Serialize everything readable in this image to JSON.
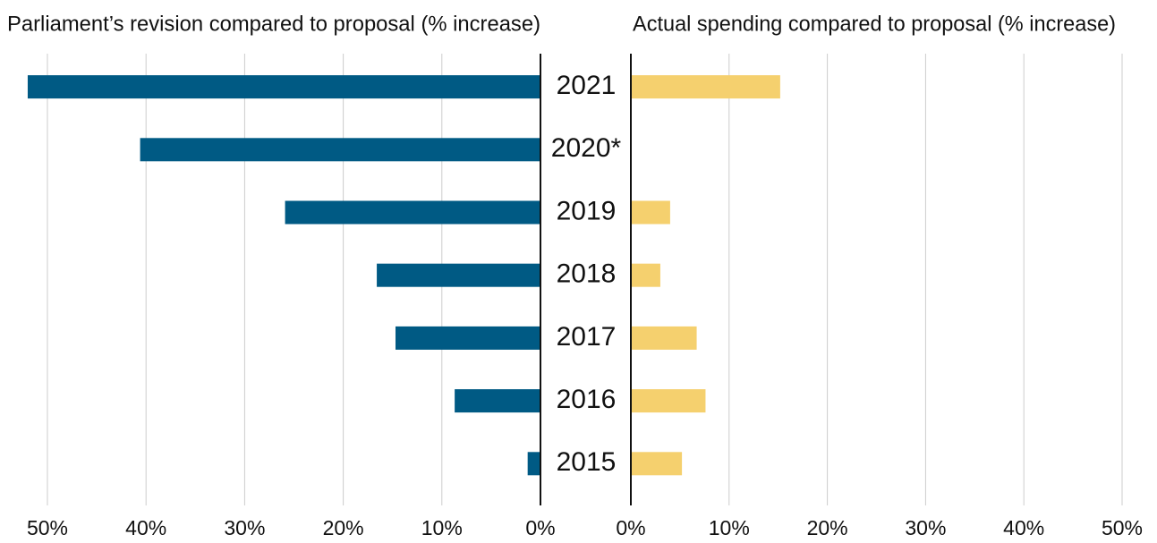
{
  "chart_data": [
    {
      "type": "bar",
      "orientation": "horizontal",
      "direction": "left",
      "title": "Parliament’s revision compared to proposal (% increase)",
      "categories": [
        "2021",
        "2020*",
        "2019",
        "2018",
        "2017",
        "2016",
        "2015"
      ],
      "values": [
        52.0,
        40.6,
        25.9,
        16.6,
        14.7,
        8.7,
        1.3
      ],
      "color": "#005a84",
      "xlim": [
        0,
        50
      ],
      "xticks": [
        {
          "value": 0,
          "label": "0%"
        },
        {
          "value": 10,
          "label": "10%"
        },
        {
          "value": 20,
          "label": "20%"
        },
        {
          "value": 30,
          "label": "30%"
        },
        {
          "value": 40,
          "label": "40%"
        },
        {
          "value": 50,
          "label": "50%"
        }
      ],
      "grid": true
    },
    {
      "type": "bar",
      "orientation": "horizontal",
      "direction": "right",
      "title": "Actual spending compared to proposal (% increase)",
      "values": [
        15.2,
        null,
        4.0,
        3.0,
        6.7,
        7.6,
        5.2
      ],
      "color": "#f5d06e",
      "xlim": [
        0,
        50
      ],
      "xticks": [
        {
          "value": 0,
          "label": "0%"
        },
        {
          "value": 10,
          "label": "10%"
        },
        {
          "value": 20,
          "label": "20%"
        },
        {
          "value": 30,
          "label": "30%"
        },
        {
          "value": 40,
          "label": "40%"
        },
        {
          "value": 50,
          "label": "50%"
        }
      ],
      "grid": true
    }
  ]
}
